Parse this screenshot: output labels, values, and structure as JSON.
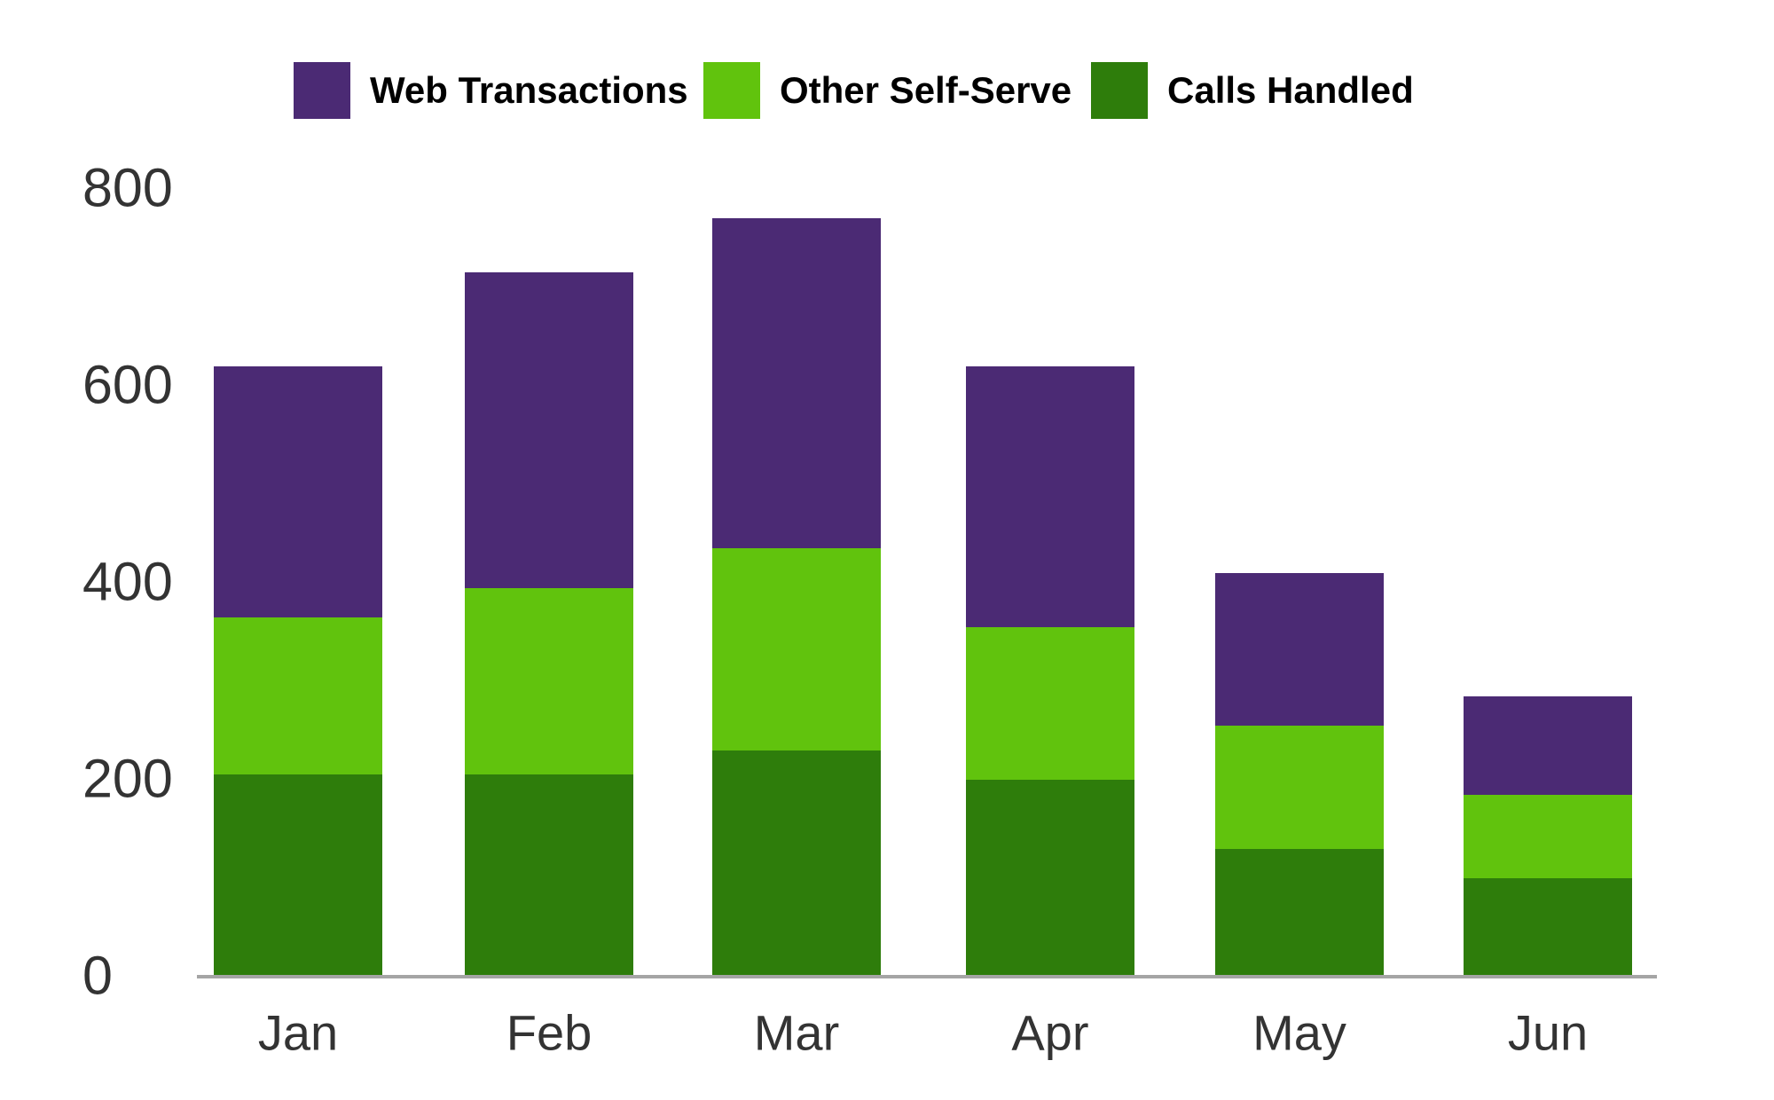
{
  "legend": {
    "items": [
      {
        "label": "Web Transactions",
        "color": "#4b2a74"
      },
      {
        "label": "Other Self-Serve",
        "color": "#61c30d"
      },
      {
        "label": "Calls Handled",
        "color": "#2e7d0b"
      }
    ]
  },
  "chart_data": {
    "type": "bar",
    "stacked": true,
    "title": "",
    "xlabel": "",
    "ylabel": "",
    "categories": [
      "Jan",
      "Feb",
      "Mar",
      "Apr",
      "May",
      "Jun"
    ],
    "series": [
      {
        "name": "Calls Handled",
        "color": "#2e7d0b",
        "values": [
          205,
          205,
          230,
          200,
          130,
          100
        ]
      },
      {
        "name": "Other Self-Serve",
        "color": "#61c30d",
        "values": [
          160,
          190,
          205,
          155,
          125,
          85
        ]
      },
      {
        "name": "Web Transactions",
        "color": "#4b2a74",
        "values": [
          255,
          320,
          335,
          265,
          155,
          100
        ]
      }
    ],
    "stack_totals": [
      620,
      715,
      770,
      620,
      410,
      285
    ],
    "ylim": [
      0,
      800
    ],
    "yticks": [
      0,
      200,
      400,
      600,
      800
    ],
    "grid": false,
    "legend_position": "top",
    "axis_line_color": "#a5a5a5",
    "axis_label_color": "#333333",
    "background_color": "#ffffff"
  }
}
